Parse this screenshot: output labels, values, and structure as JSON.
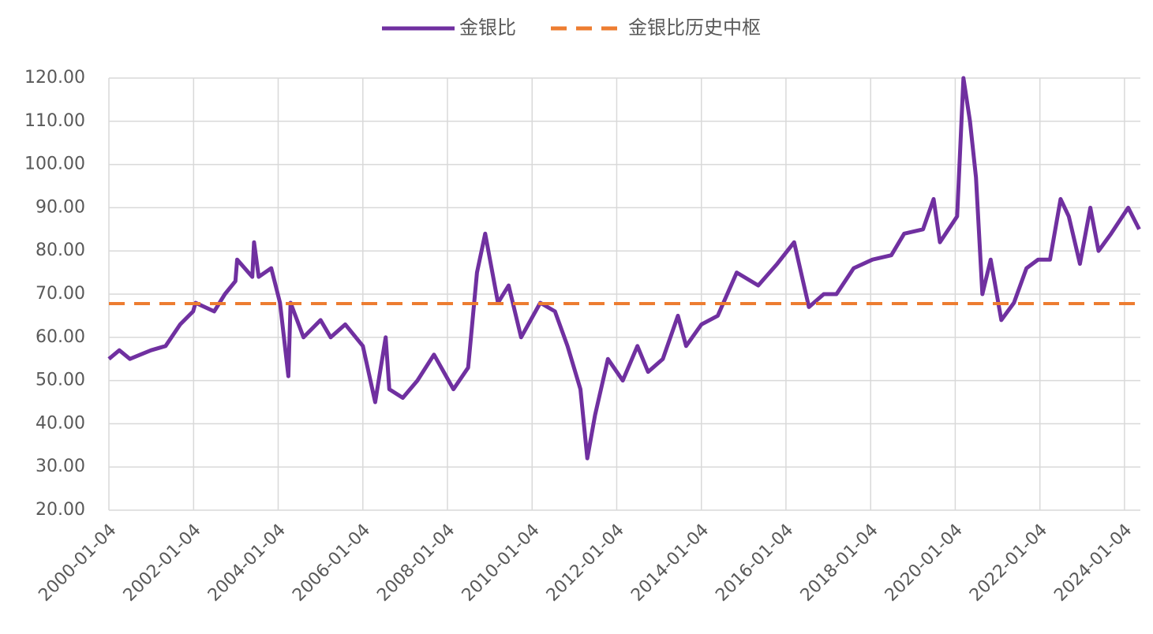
{
  "chart_data": {
    "type": "line",
    "x": [
      "2000-01-04",
      "2000-04-03",
      "2000-07-03",
      "2000-10-02",
      "2001-01-02",
      "2001-05-07",
      "2001-09-10",
      "2001-12-31",
      "2002-01-21",
      "2002-07-01",
      "2002-10-01",
      "2002-12-31",
      "2003-01-15",
      "2003-05-26",
      "2003-06-10",
      "2003-07-20",
      "2003-11-05",
      "2004-01-20",
      "2004-04-01",
      "2004-04-20",
      "2004-08-10",
      "2005-01-04",
      "2005-04-01",
      "2005-08-05",
      "2006-01-04",
      "2006-04-20",
      "2006-07-20",
      "2006-08-20",
      "2006-12-15",
      "2007-04-20",
      "2007-09-10",
      "2008-02-25",
      "2008-07-01",
      "2008-09-15",
      "2008-11-25",
      "2009-03-15",
      "2009-06-15",
      "2009-10-01",
      "2010-03-15",
      "2010-07-20",
      "2010-11-05",
      "2011-02-25",
      "2011-04-25",
      "2011-07-01",
      "2011-10-20",
      "2012-02-25",
      "2012-07-01",
      "2012-10-01",
      "2013-02-05",
      "2013-06-15",
      "2013-08-25",
      "2014-01-04",
      "2014-05-25",
      "2014-11-05",
      "2015-05-10",
      "2015-10-20",
      "2016-03-15",
      "2016-07-20",
      "2016-11-25",
      "2017-03-15",
      "2017-08-10",
      "2018-01-20",
      "2018-07-01",
      "2018-10-20",
      "2019-04-01",
      "2019-07-01",
      "2019-08-25",
      "2020-01-20",
      "2020-03-15",
      "2020-05-10",
      "2020-07-01",
      "2020-08-25",
      "2020-11-05",
      "2021-02-05",
      "2021-05-25",
      "2021-09-10",
      "2021-12-20",
      "2022-04-01",
      "2022-07-01",
      "2022-09-10",
      "2022-12-15",
      "2023-03-15",
      "2023-05-25",
      "2023-09-10",
      "2024-02-05",
      "2024-05-10"
    ],
    "series": [
      {
        "name": "金银比",
        "color": "#7030a0",
        "values": [
          55,
          57,
          55,
          56,
          57,
          58,
          63,
          66,
          68,
          66,
          70,
          73,
          78,
          74,
          82,
          74,
          76,
          68,
          51,
          68,
          60,
          64,
          60,
          63,
          58,
          45,
          60,
          48,
          46,
          50,
          56,
          48,
          53,
          75,
          84,
          68,
          72,
          60,
          68,
          66,
          58,
          48,
          32,
          42,
          55,
          50,
          58,
          52,
          55,
          65,
          58,
          63,
          65,
          75,
          72,
          77,
          82,
          67,
          70,
          70,
          76,
          78,
          79,
          84,
          85,
          92,
          82,
          88,
          120,
          110,
          97,
          70,
          78,
          64,
          68,
          76,
          78,
          78,
          92,
          88,
          77,
          90,
          80,
          84,
          90,
          85
        ]
      }
    ],
    "hlines": [
      {
        "name": "金银比历史中枢",
        "color": "#ed7d31",
        "value": 67.8
      }
    ],
    "xlim": [
      "2000-01-04",
      "2024-05-20"
    ],
    "xticks": [
      "2000-01-04",
      "2002-01-04",
      "2004-01-04",
      "2006-01-04",
      "2008-01-04",
      "2010-01-04",
      "2012-01-04",
      "2014-01-04",
      "2016-01-04",
      "2018-01-04",
      "2020-01-04",
      "2022-01-04",
      "2024-01-04"
    ],
    "ylim": [
      20,
      120
    ],
    "yticks": [
      {
        "value": 20,
        "label": "20.00"
      },
      {
        "value": 30,
        "label": "30.00"
      },
      {
        "value": 40,
        "label": "40.00"
      },
      {
        "value": 50,
        "label": "50.00"
      },
      {
        "value": 60,
        "label": "60.00"
      },
      {
        "value": 70,
        "label": "70.00"
      },
      {
        "value": 80,
        "label": "80.00"
      },
      {
        "value": 90,
        "label": "90.00"
      },
      {
        "value": 100,
        "label": "100.00"
      },
      {
        "value": 110,
        "label": "110.00"
      },
      {
        "value": 120,
        "label": "120.00"
      }
    ],
    "grid": true,
    "legend": "top"
  }
}
